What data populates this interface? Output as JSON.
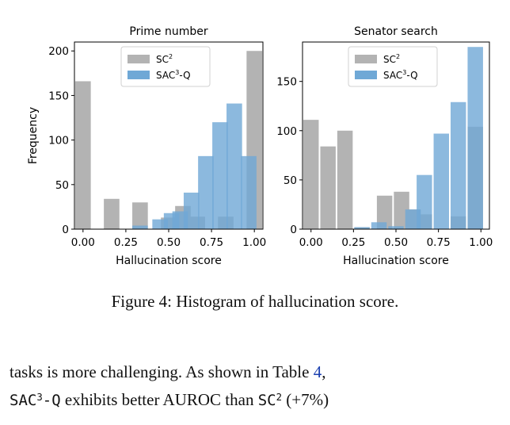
{
  "chart_data": [
    {
      "type": "bar",
      "title": "Prime number",
      "xlabel": "Hallucination score",
      "ylabel": "Frequency",
      "xlim": [
        -0.05,
        1.05
      ],
      "ylim": [
        0,
        210
      ],
      "xticks": [
        "0.00",
        "0.25",
        "0.50",
        "0.75",
        "1.00"
      ],
      "xtick_values": [
        0,
        0.25,
        0.5,
        0.75,
        1.0
      ],
      "yticks": [
        0,
        50,
        100,
        150,
        200
      ],
      "bin_width": 0.1,
      "legend_position": "top-center",
      "series": [
        {
          "name": "SC",
          "name_sup": "2",
          "color": "#b3b3b3",
          "bins": [
            {
              "x": 0.0,
              "value": 166
            },
            {
              "x": 0.167,
              "value": 34
            },
            {
              "x": 0.333,
              "value": 30
            },
            {
              "x": 0.5,
              "value": 13
            },
            {
              "x": 0.583,
              "value": 26
            },
            {
              "x": 0.667,
              "value": 14
            },
            {
              "x": 0.833,
              "value": 14
            },
            {
              "x": 1.0,
              "value": 200
            }
          ]
        },
        {
          "name": "SAC",
          "name_sup": "3",
          "name_suffix": "-Q",
          "color": "#6fa8d6",
          "bins": [
            {
              "x": 0.333,
              "value": 4
            },
            {
              "x": 0.45,
              "value": 11
            },
            {
              "x": 0.517,
              "value": 18
            },
            {
              "x": 0.567,
              "value": 20
            },
            {
              "x": 0.633,
              "value": 41
            },
            {
              "x": 0.717,
              "value": 82
            },
            {
              "x": 0.8,
              "value": 120
            },
            {
              "x": 0.883,
              "value": 141
            },
            {
              "x": 0.967,
              "value": 82
            }
          ]
        }
      ]
    },
    {
      "type": "bar",
      "title": "Senator search",
      "xlabel": "Hallucination score",
      "ylabel": "",
      "xlim": [
        -0.05,
        1.05
      ],
      "ylim": [
        0,
        190
      ],
      "xticks": [
        "0.00",
        "0.25",
        "0.50",
        "0.75",
        "1.00"
      ],
      "xtick_values": [
        0,
        0.25,
        0.5,
        0.75,
        1.0
      ],
      "yticks": [
        0,
        50,
        100,
        150
      ],
      "bin_width": 0.1,
      "legend_position": "top-center",
      "series": [
        {
          "name": "SC",
          "name_sup": "2",
          "color": "#b3b3b3",
          "bins": [
            {
              "x": 0.0,
              "value": 111
            },
            {
              "x": 0.1,
              "value": 84
            },
            {
              "x": 0.2,
              "value": 100
            },
            {
              "x": 0.3,
              "value": 2
            },
            {
              "x": 0.433,
              "value": 34
            },
            {
              "x": 0.533,
              "value": 38
            },
            {
              "x": 0.6,
              "value": 20
            },
            {
              "x": 0.667,
              "value": 15
            },
            {
              "x": 0.867,
              "value": 13
            },
            {
              "x": 0.967,
              "value": 104
            }
          ]
        },
        {
          "name": "SAC",
          "name_sup": "3",
          "name_suffix": "-Q",
          "color": "#6fa8d6",
          "bins": [
            {
              "x": 0.3,
              "value": 2
            },
            {
              "x": 0.4,
              "value": 7
            },
            {
              "x": 0.5,
              "value": 3
            },
            {
              "x": 0.6,
              "value": 20
            },
            {
              "x": 0.667,
              "value": 55
            },
            {
              "x": 0.767,
              "value": 97
            },
            {
              "x": 0.867,
              "value": 129
            },
            {
              "x": 0.967,
              "value": 185
            }
          ]
        }
      ]
    }
  ],
  "caption": "Figure 4: Histogram of hallucination score.",
  "body": {
    "line1_text": "tasks is more challenging.  As shown in Table ",
    "line1_ref": "4",
    "line1_end": ",",
    "line2_m1": "SAC",
    "line2_m1_sup": "3",
    "line2_m1_suffix": "-Q",
    "line2_mid": " exhibits better AUROC than ",
    "line2_m2": "SC",
    "line2_m2_sup": "2",
    "line2_end": " (+7%)"
  }
}
